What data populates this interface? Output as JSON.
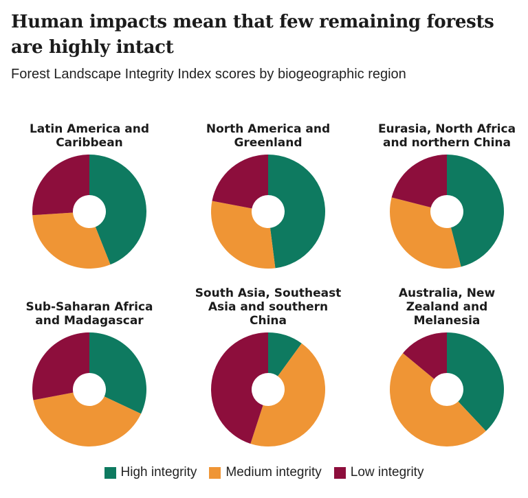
{
  "title": "Human impacts mean that few remaining forests are highly intact",
  "subtitle": "Forest Landscape Integrity Index scores by biogeographic region",
  "chart_data": {
    "type": "pie",
    "variant": "donut",
    "legend": [
      {
        "label": "High integrity",
        "color": "#0e7a60"
      },
      {
        "label": "Medium integrity",
        "color": "#ef9535"
      },
      {
        "label": "Low integrity",
        "color": "#8d0e3c"
      }
    ],
    "charts": [
      {
        "title": "Latin America and Caribbean",
        "values": [
          44,
          30,
          26
        ]
      },
      {
        "title": "North America and Greenland",
        "values": [
          48,
          30,
          22
        ]
      },
      {
        "title": "Eurasia, North Africa and northern China",
        "values": [
          46,
          33,
          21
        ]
      },
      {
        "title": "Sub-Saharan Africa and Madagascar",
        "values": [
          32,
          40,
          28
        ]
      },
      {
        "title": "South Asia, Southeast Asia and southern China",
        "values": [
          10,
          45,
          45
        ]
      },
      {
        "title": "Australia, New Zealand and Melanesia",
        "values": [
          38,
          48,
          14
        ]
      }
    ]
  }
}
